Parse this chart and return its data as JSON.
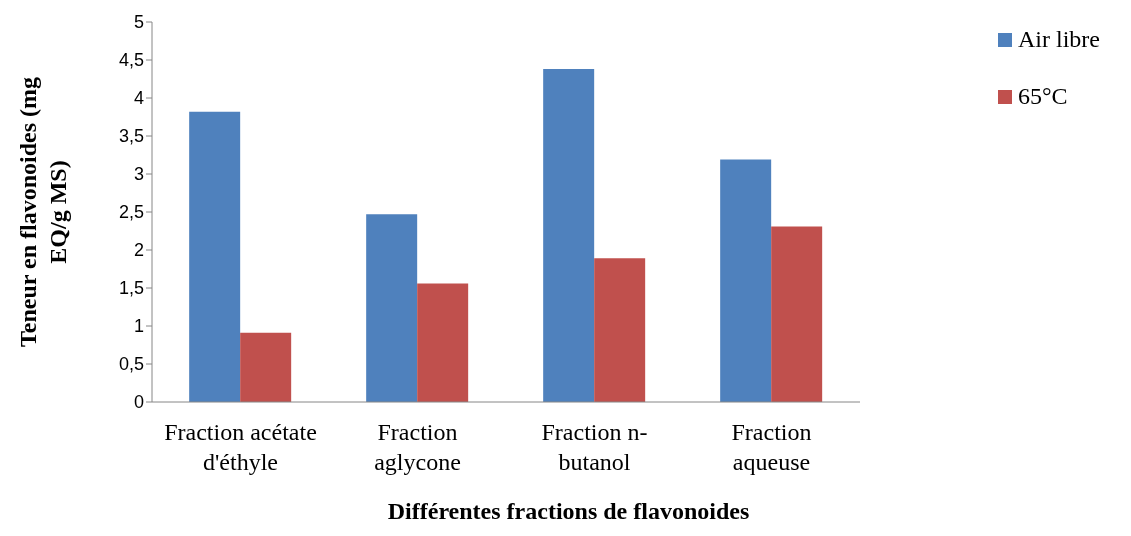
{
  "chart_data": {
    "type": "bar",
    "categories": [
      "Fraction acétate d'éthyle",
      "Fraction aglycone",
      "Fraction n-butanol",
      "Fraction aqueuse"
    ],
    "series": [
      {
        "name": "Air libre",
        "color": "#4f81bd",
        "values": [
          3.82,
          2.47,
          4.38,
          3.19
        ]
      },
      {
        "name": "65°C",
        "color": "#c0504d",
        "values": [
          0.91,
          1.56,
          1.89,
          2.31
        ]
      }
    ],
    "xlabel": "Différentes fractions de flavonoides",
    "ylabel": "Teneur en flavonoides (mg EQ/g MS)",
    "ylim": [
      0,
      5
    ],
    "yticks": [
      0,
      {
        "value": 0.5,
        "label": "0,5"
      },
      1,
      {
        "value": 1.5,
        "label": "1,5"
      },
      2,
      {
        "value": 2.5,
        "label": "2,5"
      },
      3,
      {
        "value": 3.5,
        "label": "3,5"
      },
      4,
      {
        "value": 4.5,
        "label": "4,5"
      },
      5
    ],
    "grid": false,
    "legend": "top right"
  }
}
